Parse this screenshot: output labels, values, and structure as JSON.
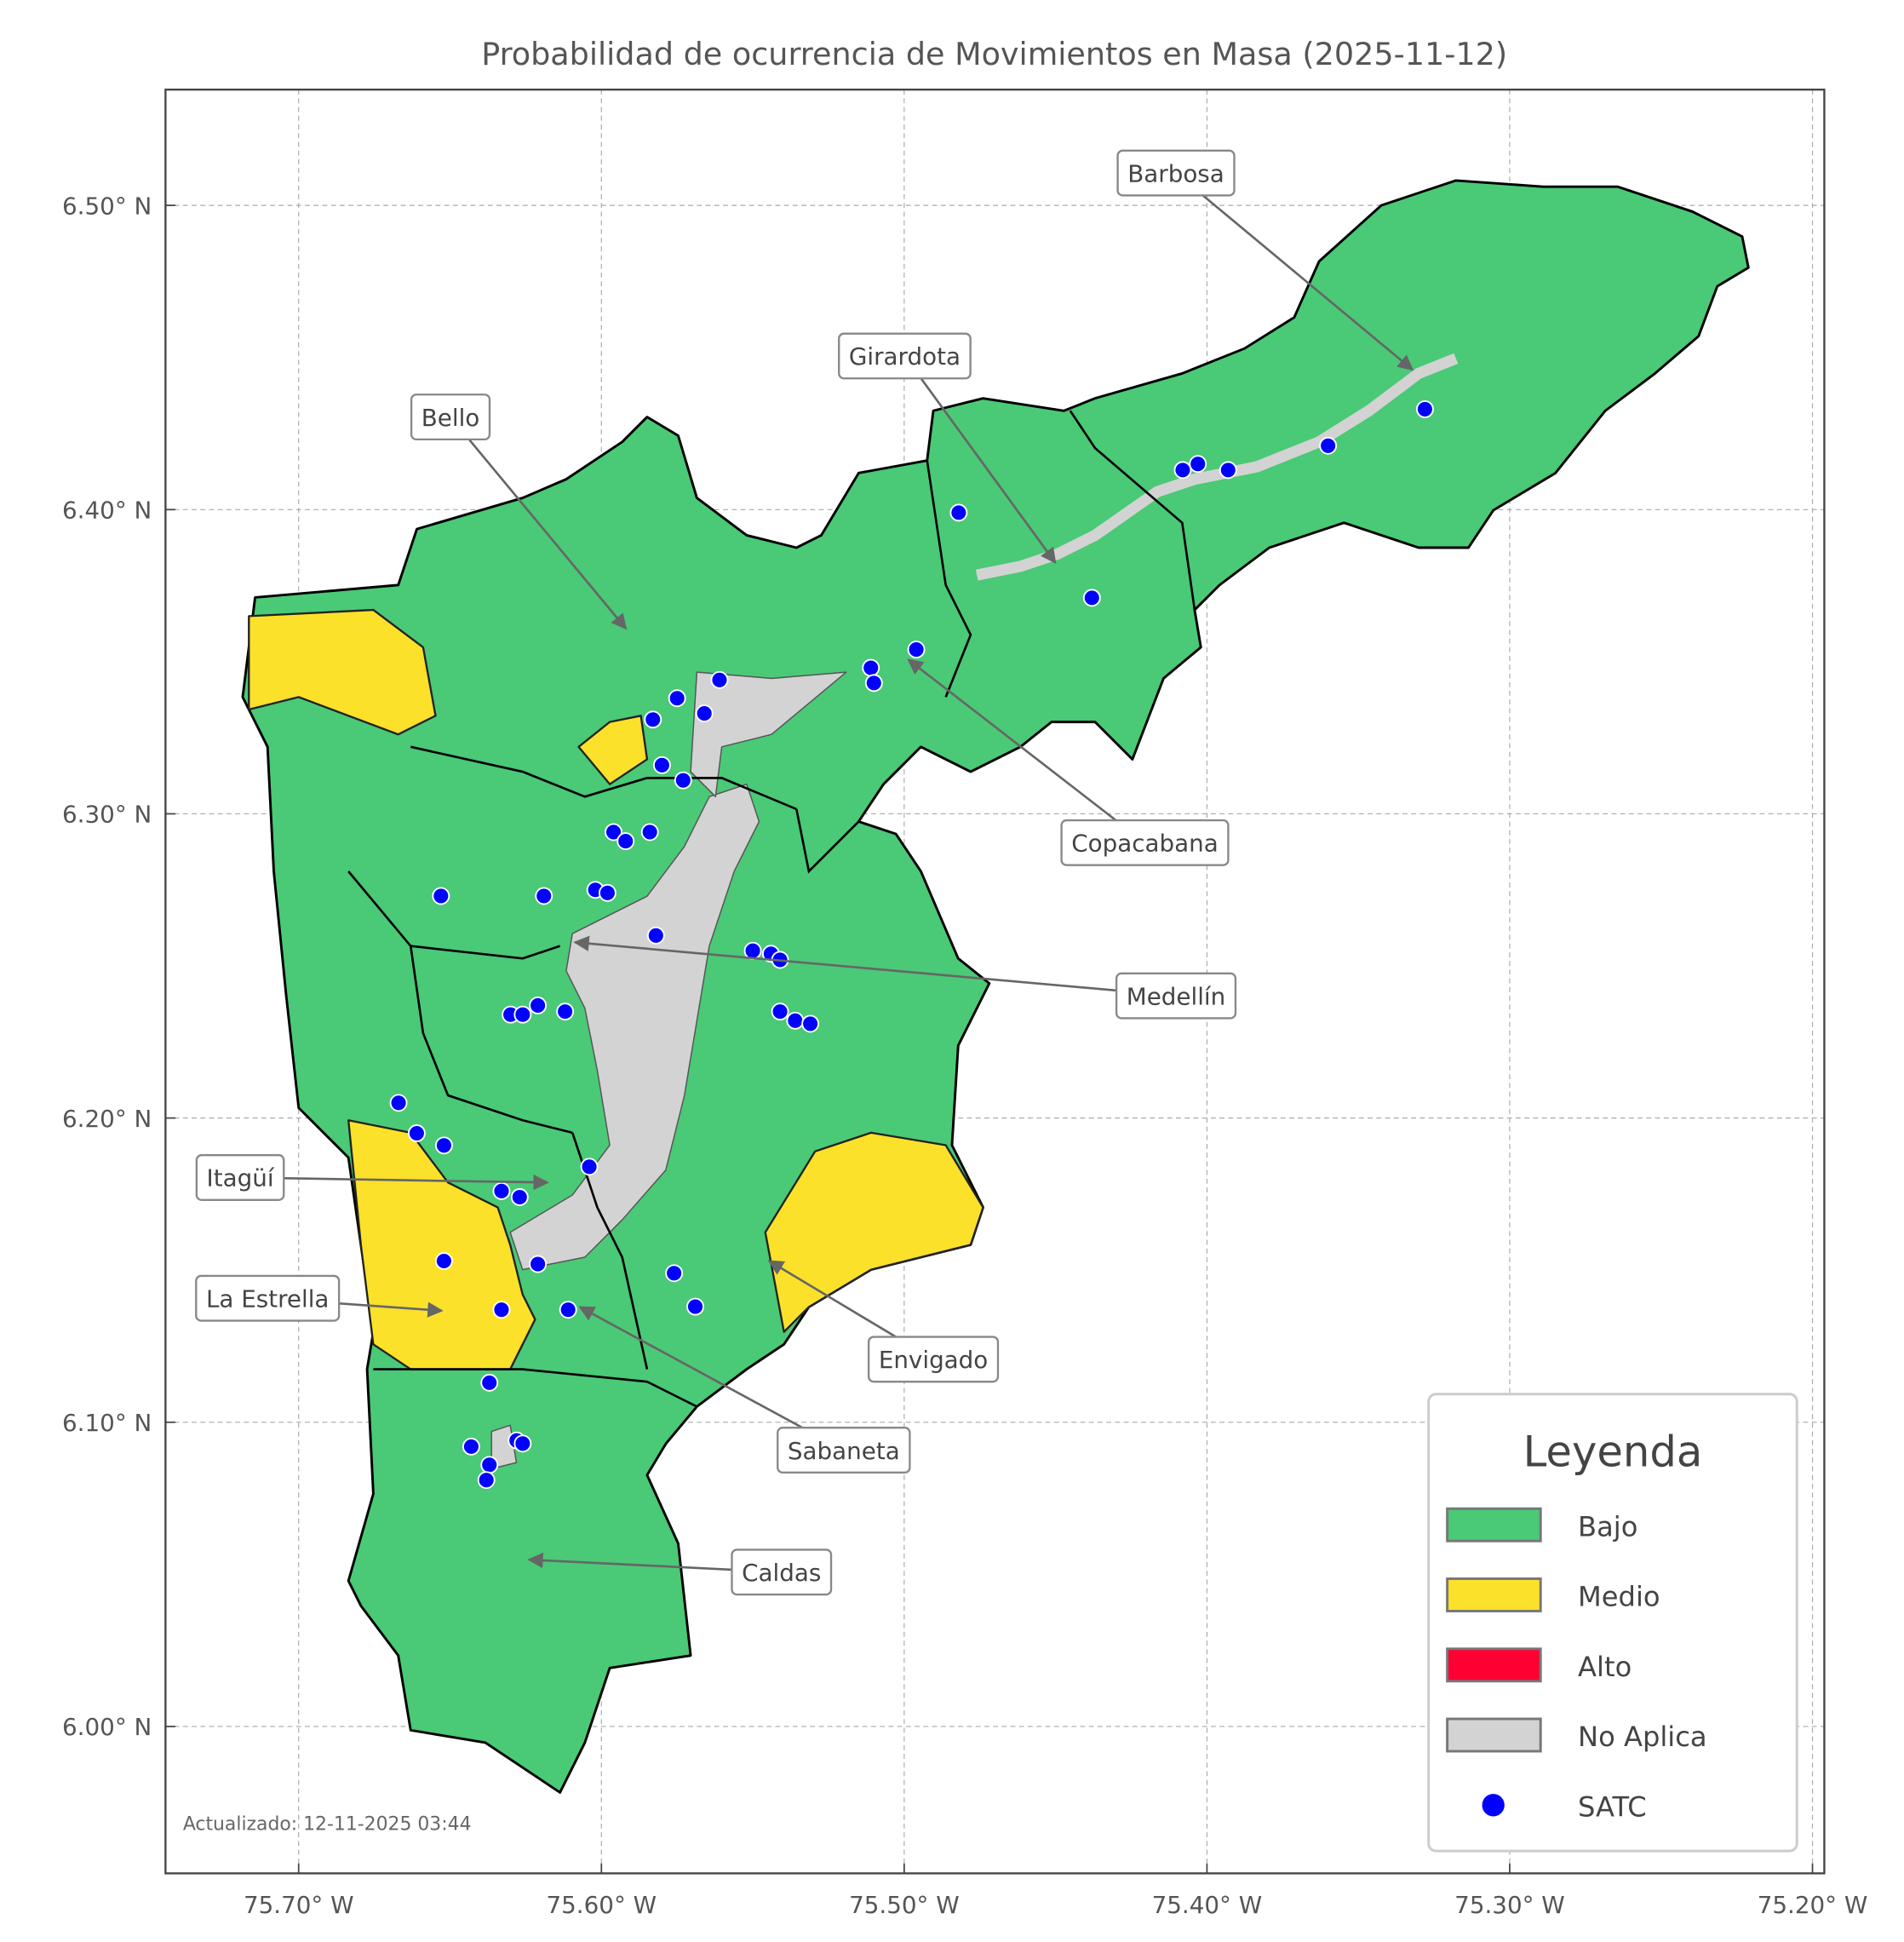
{
  "title": "Probabilidad de ocurrencia de Movimientos en Masa (2025-11-12)",
  "updated": "Actualizado: 12-11-2025 03:44",
  "colors": {
    "bajo": "#4ac977",
    "medio": "#fce12b",
    "alto": "#ff0033",
    "no_aplica": "#d3d3d3",
    "satc": "#0000ff"
  },
  "axes": {
    "x_ticks": [
      "75.70° W",
      "75.60° W",
      "75.50° W",
      "75.40° W",
      "75.30° W",
      "75.20° W"
    ],
    "y_ticks": [
      "6.50° N",
      "6.40° N",
      "6.30° N",
      "6.20° N",
      "6.10° N",
      "6.00° N"
    ],
    "x_tick_values": [
      -75.7,
      -75.6,
      -75.5,
      -75.4,
      -75.3,
      -75.2
    ],
    "y_tick_values": [
      6.5,
      6.4,
      6.3,
      6.2,
      6.1,
      6.0
    ],
    "grid": true
  },
  "legend": {
    "title": "Leyenda",
    "items": [
      {
        "label": "Bajo",
        "color": "#4ac977",
        "kind": "patch"
      },
      {
        "label": "Medio",
        "color": "#fce12b",
        "kind": "patch"
      },
      {
        "label": "Alto",
        "color": "#ff0033",
        "kind": "patch"
      },
      {
        "label": "No Aplica",
        "color": "#d3d3d3",
        "kind": "patch"
      },
      {
        "label": "SATC",
        "color": "#0000ff",
        "kind": "point"
      }
    ]
  },
  "municipalities": [
    "Barbosa",
    "Girardota",
    "Bello",
    "Copacabana",
    "Medellín",
    "Itagüí",
    "La Estrella",
    "Envigado",
    "Sabaneta",
    "Caldas"
  ],
  "satc_points": [
    [
      -75.482,
      6.399
    ],
    [
      -75.408,
      6.413
    ],
    [
      -75.403,
      6.415
    ],
    [
      -75.393,
      6.413
    ],
    [
      -75.36,
      6.421
    ],
    [
      -75.328,
      6.433
    ],
    [
      -75.438,
      6.371
    ],
    [
      -75.511,
      6.348
    ],
    [
      -75.51,
      6.343
    ],
    [
      -75.496,
      6.354
    ],
    [
      -75.575,
      6.338
    ],
    [
      -75.583,
      6.331
    ],
    [
      -75.566,
      6.333
    ],
    [
      -75.561,
      6.344
    ],
    [
      -75.58,
      6.316
    ],
    [
      -75.573,
      6.311
    ],
    [
      -75.596,
      6.294
    ],
    [
      -75.592,
      6.291
    ],
    [
      -75.584,
      6.294
    ],
    [
      -75.653,
      6.273
    ],
    [
      -75.619,
      6.273
    ],
    [
      -75.602,
      6.275
    ],
    [
      -75.598,
      6.274
    ],
    [
      -75.582,
      6.26
    ],
    [
      -75.55,
      6.255
    ],
    [
      -75.544,
      6.254
    ],
    [
      -75.541,
      6.252
    ],
    [
      -75.541,
      6.235
    ],
    [
      -75.536,
      6.232
    ],
    [
      -75.531,
      6.231
    ],
    [
      -75.621,
      6.237
    ],
    [
      -75.63,
      6.234
    ],
    [
      -75.626,
      6.234
    ],
    [
      -75.612,
      6.235
    ],
    [
      -75.667,
      6.205
    ],
    [
      -75.661,
      6.195
    ],
    [
      -75.652,
      6.191
    ],
    [
      -75.604,
      6.184
    ],
    [
      -75.633,
      6.176
    ],
    [
      -75.627,
      6.174
    ],
    [
      -75.652,
      6.153
    ],
    [
      -75.621,
      6.152
    ],
    [
      -75.576,
      6.149
    ],
    [
      -75.569,
      6.138
    ],
    [
      -75.611,
      6.137
    ],
    [
      -75.633,
      6.137
    ],
    [
      -75.637,
      6.113
    ],
    [
      -75.643,
      6.092
    ],
    [
      -75.628,
      6.094
    ],
    [
      -75.626,
      6.093
    ],
    [
      -75.637,
      6.086
    ],
    [
      -75.638,
      6.081
    ]
  ]
}
